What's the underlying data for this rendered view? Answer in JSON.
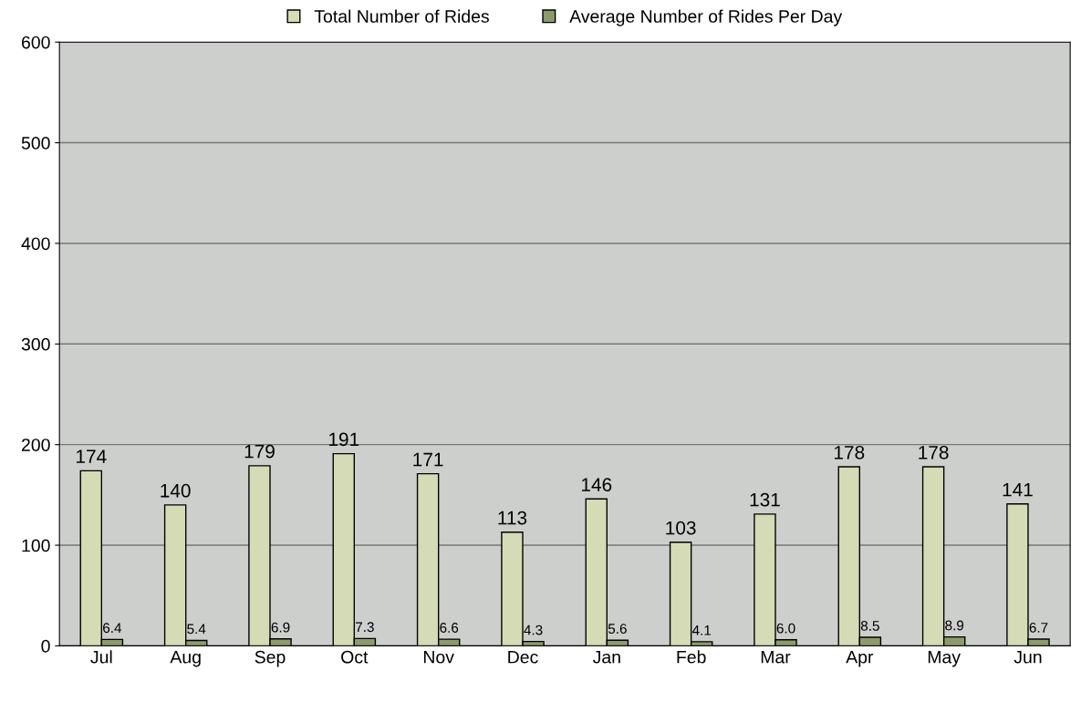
{
  "chart_data": {
    "type": "bar",
    "categories": [
      "Jul",
      "Aug",
      "Sep",
      "Oct",
      "Nov",
      "Dec",
      "Jan",
      "Feb",
      "Mar",
      "Apr",
      "May",
      "Jun"
    ],
    "series": [
      {
        "name": "Total Number of Rides",
        "color": "#d5dbb5",
        "values": [
          174,
          140,
          179,
          191,
          171,
          113,
          146,
          103,
          131,
          178,
          178,
          141
        ]
      },
      {
        "name": "Average Number of Rides Per Day",
        "color": "#8c9b6c",
        "values": [
          6.4,
          5.4,
          6.9,
          7.3,
          6.6,
          4.3,
          5.6,
          4.1,
          6.0,
          8.5,
          8.9,
          6.7
        ],
        "value_labels": [
          "6.4",
          "5.4",
          "6.9",
          "7.3",
          "6.6",
          "4.3",
          "5.6",
          "4.1",
          "6.0",
          "8.5",
          "8.9",
          "6.7"
        ]
      }
    ],
    "ylim": [
      0,
      600
    ],
    "yticks": [
      0,
      100,
      200,
      300,
      400,
      500,
      600
    ],
    "grid": "y",
    "legend": "top",
    "data_labels": true
  }
}
